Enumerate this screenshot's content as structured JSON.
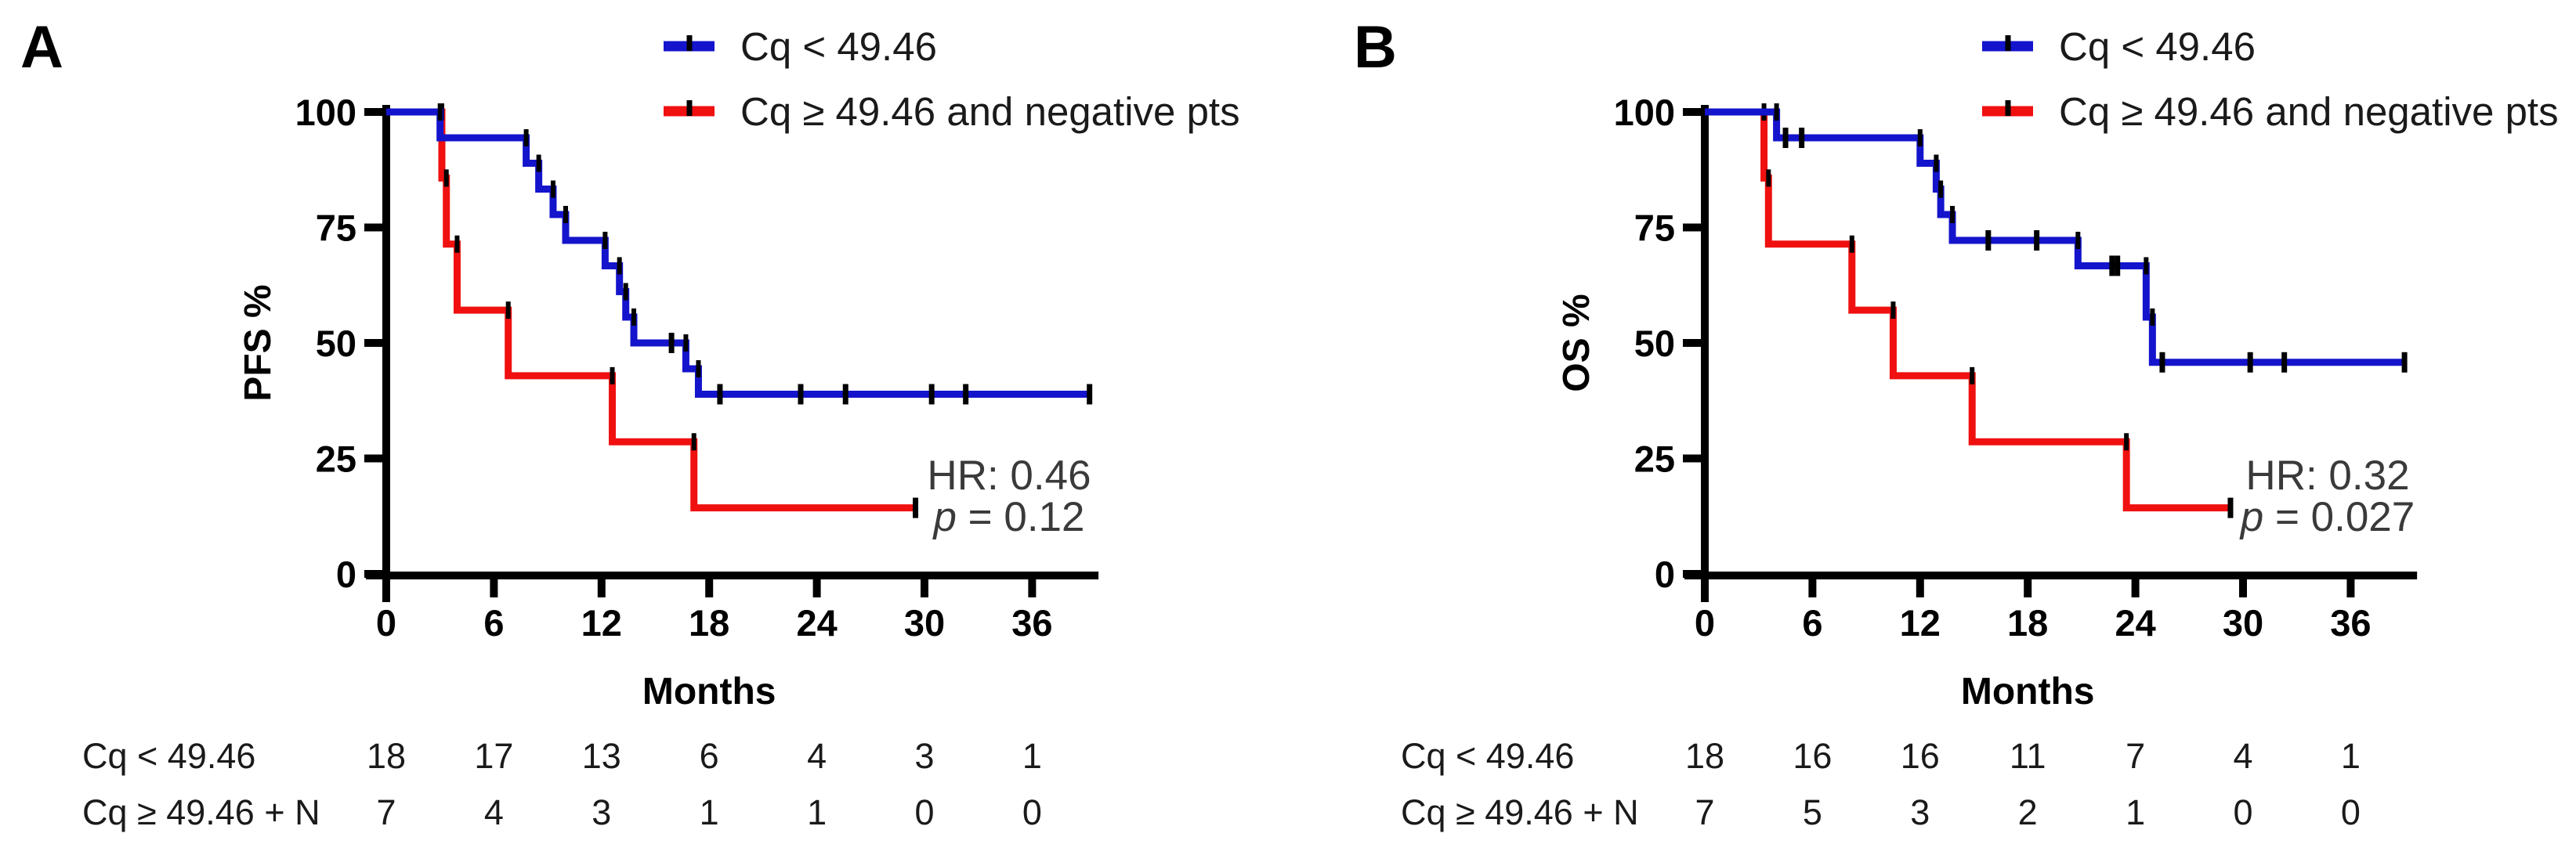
{
  "figure": {
    "background": "#ffffff"
  },
  "chart_data": [
    {
      "type": "line",
      "subtype": "kaplan-meier-step",
      "panel_label": "A",
      "xlabel": "Months",
      "ylabel": "PFS %",
      "xlim": [
        0,
        39.5
      ],
      "ylim": [
        0,
        100
      ],
      "x_ticks": [
        0,
        6,
        12,
        18,
        24,
        30,
        36
      ],
      "y_ticks": [
        100,
        75,
        50,
        25,
        0
      ],
      "grid": false,
      "legend_position": "top-right-above-plot",
      "series": [
        {
          "name": "Cq < 49.46",
          "color": "#1414CC",
          "steps": [
            [
              0,
              100
            ],
            [
              3.0,
              94.4
            ],
            [
              7.8,
              88.9
            ],
            [
              8.5,
              83.3
            ],
            [
              9.3,
              77.8
            ],
            [
              10.0,
              72.2
            ],
            [
              12.2,
              66.7
            ],
            [
              13.0,
              61.1
            ],
            [
              13.35,
              55.6
            ],
            [
              13.8,
              50
            ],
            [
              16.7,
              44.4
            ],
            [
              17.4,
              38.9
            ]
          ],
          "end_x": 39.3,
          "censor_marks": [
            [
              15.9,
              50
            ],
            [
              18.6,
              38.9
            ],
            [
              23.1,
              38.9
            ],
            [
              25.6,
              38.9
            ],
            [
              30.4,
              38.9
            ],
            [
              32.3,
              38.9
            ],
            [
              39.2,
              38.9
            ]
          ]
        },
        {
          "name": "Cq ≥ 49.46 and negative pts",
          "color": "#F01010",
          "steps": [
            [
              0,
              100
            ],
            [
              3.1,
              85.7
            ],
            [
              3.35,
              71.4
            ],
            [
              3.95,
              57.1
            ],
            [
              6.8,
              42.9
            ],
            [
              12.6,
              28.6
            ],
            [
              17.15,
              14.3
            ]
          ],
          "end_x": 29.5,
          "censor_marks": [
            [
              29.5,
              14.3
            ]
          ]
        }
      ],
      "annotation": {
        "hr": "HR: 0.46",
        "p_prefix": "p",
        "p_text": " = 0.12"
      },
      "risk_table": {
        "columns_months": [
          0,
          6,
          12,
          18,
          24,
          30,
          36
        ],
        "rows": [
          {
            "label": "Cq < 49.46",
            "counts": [
              18,
              17,
              13,
              6,
              4,
              3,
              1
            ]
          },
          {
            "label": "Cq ≥ 49.46 + N",
            "counts": [
              7,
              4,
              3,
              1,
              1,
              0,
              0
            ]
          }
        ]
      }
    },
    {
      "type": "line",
      "subtype": "kaplan-meier-step",
      "panel_label": "B",
      "xlabel": "Months",
      "ylabel": "OS %",
      "xlim": [
        0,
        39.5
      ],
      "ylim": [
        0,
        100
      ],
      "x_ticks": [
        0,
        6,
        12,
        18,
        24,
        30,
        36
      ],
      "y_ticks": [
        100,
        75,
        50,
        25,
        0
      ],
      "grid": false,
      "legend_position": "top-right-above-plot",
      "series": [
        {
          "name": "Cq < 49.46",
          "color": "#1414CC",
          "steps": [
            [
              0,
              100
            ],
            [
              4.0,
              94.4
            ],
            [
              12.0,
              88.9
            ],
            [
              12.9,
              83.3
            ],
            [
              13.15,
              77.8
            ],
            [
              13.8,
              72.2
            ],
            [
              20.8,
              66.7
            ],
            [
              24.6,
              55.6
            ],
            [
              24.95,
              45.8
            ]
          ],
          "end_x": 39.0,
          "censor_marks": [
            [
              4.5,
              94.4
            ],
            [
              5.4,
              94.4
            ],
            [
              15.8,
              72.2
            ],
            [
              18.5,
              72.2
            ],
            [
              22.7,
              66.7
            ],
            [
              23.0,
              66.7
            ],
            [
              25.5,
              45.8
            ],
            [
              30.4,
              45.8
            ],
            [
              32.3,
              45.8
            ],
            [
              39.0,
              45.8
            ]
          ]
        },
        {
          "name": "Cq ≥ 49.46 and negative pts",
          "color": "#F01010",
          "steps": [
            [
              0,
              100
            ],
            [
              3.3,
              85.7
            ],
            [
              3.55,
              71.4
            ],
            [
              8.2,
              57.1
            ],
            [
              10.5,
              42.9
            ],
            [
              14.9,
              28.6
            ],
            [
              23.5,
              14.3
            ]
          ],
          "end_x": 29.3,
          "censor_marks": [
            [
              29.3,
              14.3
            ]
          ]
        }
      ],
      "annotation": {
        "hr": "HR: 0.32",
        "p_prefix": "p",
        "p_text": " = 0.027"
      },
      "risk_table": {
        "columns_months": [
          0,
          6,
          12,
          18,
          24,
          30,
          36
        ],
        "rows": [
          {
            "label": "Cq < 49.46",
            "counts": [
              18,
              16,
              16,
              11,
              7,
              4,
              1
            ]
          },
          {
            "label": "Cq ≥ 49.46 + N",
            "counts": [
              7,
              5,
              3,
              2,
              1,
              0,
              0
            ]
          }
        ]
      }
    }
  ]
}
